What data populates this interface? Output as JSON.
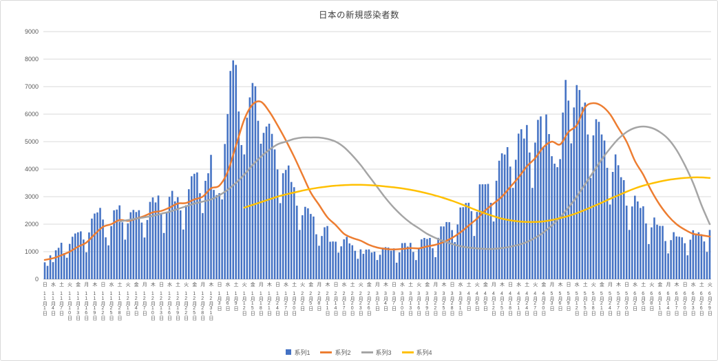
{
  "chart_data": {
    "type": "combo",
    "title": "日本の新規感染者数",
    "ylim": [
      0,
      9000
    ],
    "ytick_interval": 1000,
    "y_tick_labels": [
      "0",
      "1000",
      "2000",
      "3000",
      "4000",
      "5000",
      "6000",
      "7000",
      "8000",
      "9000"
    ],
    "grid": "horizontal",
    "legend_position": "bottom",
    "tick_step_days": 3,
    "x_tick_weekdays": [
      "日",
      "水",
      "土",
      "火",
      "金",
      "月",
      "木",
      "日",
      "水",
      "土",
      "火",
      "金",
      "月",
      "木",
      "日",
      "水",
      "土",
      "火",
      "金",
      "月",
      "木",
      "日",
      "水",
      "土",
      "火",
      "金",
      "月",
      "木",
      "日",
      "水",
      "土",
      "火",
      "金",
      "月",
      "木",
      "日",
      "水",
      "土",
      "火",
      "金",
      "月",
      "木",
      "日",
      "水",
      "土",
      "火",
      "金",
      "月",
      "木",
      "日",
      "水",
      "土",
      "火",
      "金",
      "月",
      "木",
      "日",
      "水",
      "土",
      "火",
      "金",
      "月",
      "木",
      "日",
      "水",
      "土",
      "火",
      "金",
      "月",
      "木",
      "日",
      "水",
      "土",
      "火",
      "金",
      "月",
      "木",
      "日",
      "水",
      "土",
      "火"
    ],
    "x_tick_dates": [
      "11月1日",
      "11月4日",
      "11月7日",
      "11月10日",
      "11月13日",
      "11月16日",
      "11月19日",
      "11月22日",
      "11月25日",
      "11月28日",
      "12月1日",
      "12月4日",
      "12月7日",
      "12月10日",
      "12月13日",
      "12月16日",
      "12月19日",
      "12月22日",
      "12月25日",
      "12月28日",
      "12月31日",
      "1月3日",
      "1月6日",
      "1月9日",
      "1月12日",
      "1月15日",
      "1月18日",
      "1月21日",
      "1月24日",
      "1月27日",
      "1月30日",
      "2月2日",
      "2月5日",
      "2月8日",
      "2月11日",
      "2月14日",
      "2月17日",
      "2月20日",
      "2月23日",
      "2月26日",
      "3月1日",
      "3月4日",
      "3月7日",
      "3月10日",
      "3月13日",
      "3月16日",
      "3月19日",
      "3月22日",
      "3月25日",
      "3月28日",
      "3月31日",
      "4月3日",
      "4月6日",
      "4月9日",
      "4月12日",
      "4月15日",
      "4月18日",
      "4月21日",
      "4月24日",
      "4月27日",
      "4月30日",
      "5月3日",
      "5月6日",
      "5月9日",
      "5月12日",
      "5月15日",
      "5月18日",
      "5月21日",
      "5月24日",
      "5月27日",
      "5月30日",
      "6月2日",
      "6月5日",
      "6月8日",
      "6月11日",
      "6月14日",
      "6月17日",
      "6月20日",
      "6月23日",
      "6月26日",
      "6月29日"
    ],
    "bar_series": {
      "name": "系列1",
      "color": "#4472C4",
      "values": [
        614,
        484,
        867,
        620,
        1049,
        1141,
        1324,
        947,
        780,
        1284,
        1543,
        1661,
        1704,
        1739,
        1441,
        977,
        1699,
        2203,
        2386,
        2427,
        2592,
        2168,
        1521,
        1230,
        1930,
        2504,
        2531,
        2684,
        2067,
        1438,
        2030,
        2434,
        2518,
        2442,
        2508,
        2058,
        1515,
        2152,
        2810,
        2972,
        2790,
        3041,
        2388,
        1680,
        2410,
        2994,
        3211,
        2829,
        2982,
        2501,
        1805,
        2686,
        3271,
        3742,
        3832,
        3881,
        3127,
        2403,
        3576,
        3852,
        4520,
        3246,
        3059,
        3127,
        2899,
        4915,
        6004,
        7570,
        7957,
        7790,
        6097,
        4876,
        4536,
        5870,
        6610,
        7133,
        7014,
        5759,
        4925,
        5320,
        5549,
        5653,
        5283,
        4717,
        3989,
        2764,
        3853,
        3971,
        4133,
        3534,
        3344,
        2673,
        1792,
        2324,
        2631,
        2576,
        2372,
        2277,
        1632,
        1216,
        1570,
        1887,
        1933,
        1362,
        1371,
        1364,
        965,
        1194,
        1448,
        1538,
        1301,
        1234,
        1032,
        741,
        1085,
        922,
        1076,
        1083,
        970,
        999,
        697,
        888,
        1148,
        1165,
        1150,
        1036,
        1121,
        599,
        974,
        1310,
        1317,
        1186,
        1320,
        989,
        695,
        1133,
        1448,
        1500,
        1463,
        1500,
        1124,
        800,
        1504,
        1918,
        1917,
        2077,
        2071,
        1785,
        1348,
        1988,
        2607,
        2617,
        2770,
        2779,
        2472,
        1571,
        2445,
        3448,
        3450,
        3451,
        3464,
        2777,
        2097,
        3579,
        4307,
        4576,
        4532,
        4801,
        4093,
        3320,
        4342,
        5292,
        5452,
        5113,
        5605,
        4605,
        3319,
        4965,
        5792,
        5918,
        4802,
        5987,
        5276,
        4471,
        4199,
        4072,
        4365,
        6058,
        7244,
        6493,
        4938,
        6243,
        7057,
        6879,
        6263,
        6421,
        5261,
        3680,
        5230,
        5815,
        5721,
        5261,
        5040,
        4048,
        2714,
        3900,
        4536,
        4142,
        3708,
        3601,
        2674,
        1791,
        2644,
        3035,
        2826,
        2590,
        2649,
        2027,
        1277,
        1884,
        2242,
        1980,
        1937,
        1937,
        1387,
        937,
        1420,
        1709,
        1554,
        1544,
        1521,
        1307,
        868,
        1435,
        1777,
        1661,
        1706,
        1633,
        1372,
        991,
        1790
      ]
    },
    "line_series": [
      {
        "name": "系列2",
        "color": "#ED7D31",
        "values_at_ticks": [
          700,
          760,
          870,
          1000,
          1180,
          1330,
          1630,
          1900,
          2000,
          2150,
          2120,
          2200,
          2300,
          2430,
          2480,
          2600,
          2750,
          2770,
          2900,
          3000,
          3300,
          3400,
          3900,
          4850,
          5800,
          6350,
          6450,
          6100,
          5600,
          5050,
          4450,
          3800,
          3150,
          2700,
          2250,
          1970,
          1650,
          1500,
          1400,
          1250,
          1150,
          1100,
          1080,
          1100,
          1130,
          1120,
          1190,
          1250,
          1350,
          1500,
          1700,
          1950,
          2200,
          2500,
          2750,
          3000,
          3350,
          3700,
          4100,
          4400,
          4800,
          5000,
          4900,
          5350,
          5600,
          6250,
          6400,
          6300,
          6000,
          5500,
          5000,
          4300,
          3800,
          3200,
          2700,
          2300,
          2000,
          1800,
          1650,
          1600,
          1550
        ]
      },
      {
        "name": "系列3",
        "color": "#A5A5A5",
        "values_at_ticks": [
          null,
          null,
          null,
          null,
          null,
          null,
          null,
          null,
          null,
          2100,
          2150,
          2200,
          2250,
          2300,
          2380,
          2450,
          2550,
          2650,
          2750,
          2820,
          2900,
          3050,
          3250,
          3500,
          3800,
          4150,
          4450,
          4700,
          4900,
          5000,
          5100,
          5150,
          5150,
          5150,
          5100,
          5000,
          4800,
          4500,
          4150,
          3750,
          3350,
          2950,
          2600,
          2300,
          2050,
          1850,
          1650,
          1500,
          1380,
          1280,
          1200,
          1150,
          1120,
          1100,
          1100,
          1130,
          1180,
          1250,
          1350,
          1500,
          1700,
          1950,
          2250,
          2600,
          3000,
          3450,
          3900,
          4350,
          4750,
          5100,
          5350,
          5500,
          5550,
          5500,
          5350,
          5100,
          4700,
          4150,
          3500,
          2700,
          2000
        ]
      },
      {
        "name": "系列4",
        "color": "#FFC000",
        "values_at_ticks": [
          null,
          null,
          null,
          null,
          null,
          null,
          null,
          null,
          null,
          null,
          null,
          null,
          null,
          null,
          null,
          null,
          null,
          null,
          null,
          null,
          null,
          null,
          null,
          null,
          2600,
          2700,
          2800,
          2900,
          3000,
          3080,
          3150,
          3220,
          3280,
          3330,
          3370,
          3400,
          3420,
          3430,
          3430,
          3420,
          3400,
          3370,
          3340,
          3300,
          3250,
          3190,
          3120,
          3040,
          2950,
          2850,
          2740,
          2620,
          2500,
          2390,
          2290,
          2200,
          2140,
          2100,
          2080,
          2080,
          2100,
          2150,
          2220,
          2300,
          2400,
          2520,
          2650,
          2780,
          2920,
          3050,
          3180,
          3300,
          3400,
          3480,
          3550,
          3610,
          3650,
          3680,
          3700,
          3700,
          3680
        ]
      }
    ]
  },
  "colors": {
    "grid": "#D9D9D9",
    "axis_line": "#BFBFBF",
    "axis_text": "#595959",
    "title_text": "#404040",
    "chart_border": "#D9D9D9"
  }
}
